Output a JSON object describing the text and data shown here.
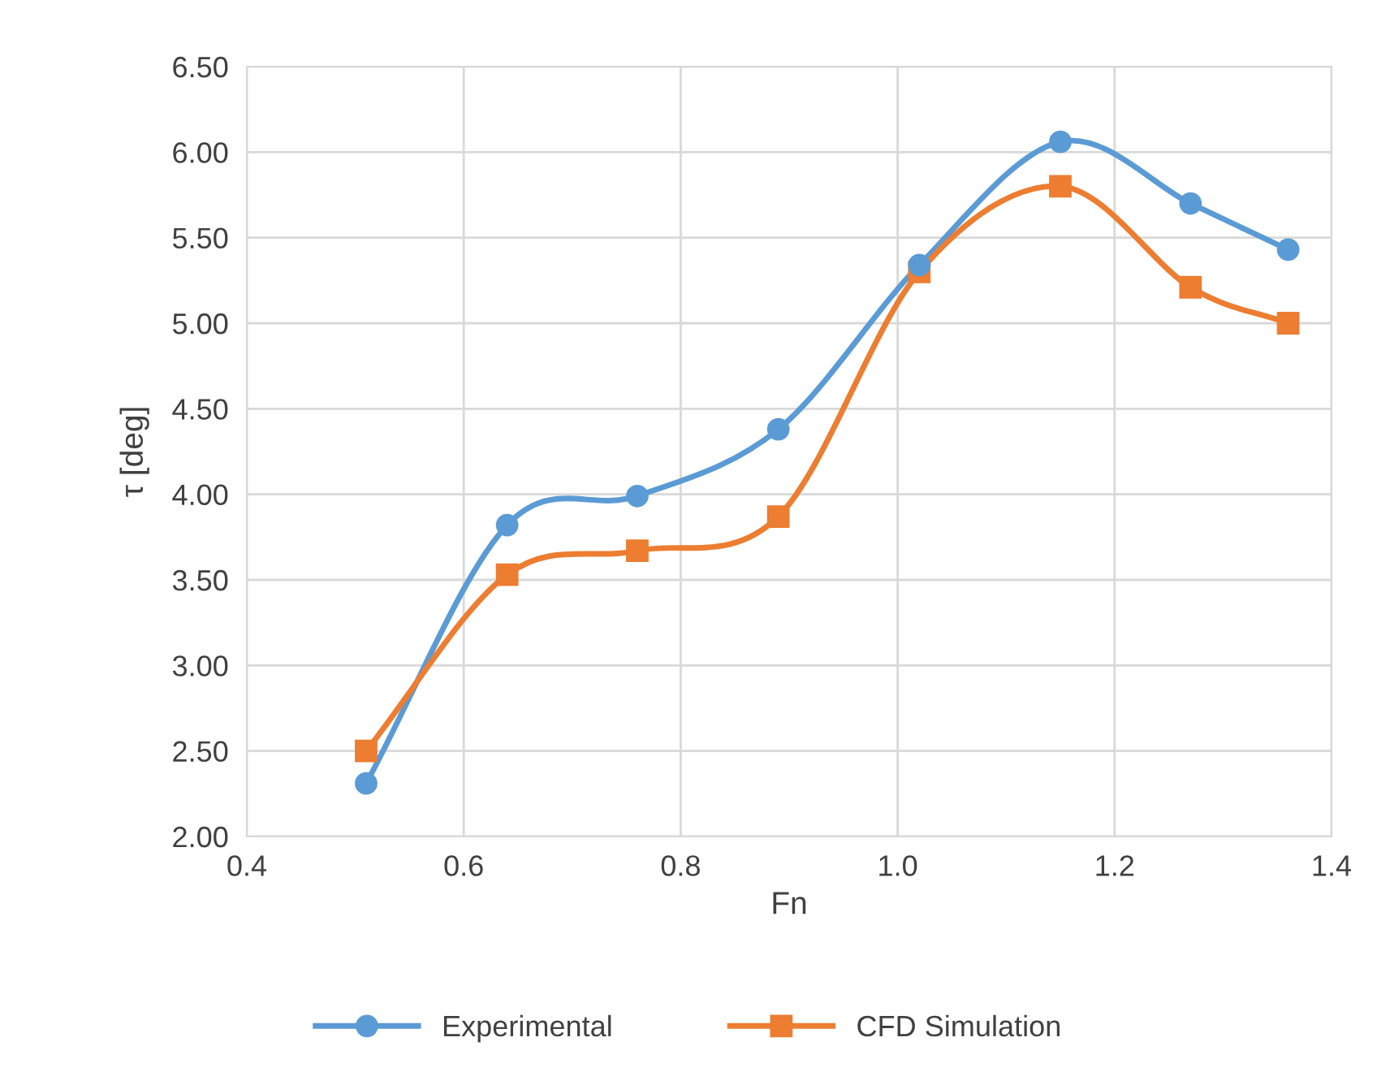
{
  "chart_data": {
    "type": "line",
    "xlabel": "Fn",
    "ylabel": "τ [deg]",
    "series": [
      {
        "name": "Experimental",
        "color": "#5b9bd5",
        "marker": "circle",
        "x": [
          0.51,
          0.64,
          0.76,
          0.89,
          1.02,
          1.15,
          1.27,
          1.36
        ],
        "values": [
          2.31,
          3.82,
          3.99,
          4.38,
          5.34,
          6.06,
          5.7,
          5.43
        ]
      },
      {
        "name": "CFD Simulation",
        "color": "#ed7d31",
        "marker": "square",
        "x": [
          0.51,
          0.64,
          0.76,
          0.89,
          1.02,
          1.15,
          1.27,
          1.36
        ],
        "values": [
          2.5,
          3.53,
          3.67,
          3.87,
          5.3,
          5.8,
          5.21,
          5.0
        ]
      }
    ],
    "xlim": [
      0.4,
      1.4
    ],
    "xticks": [
      {
        "value": 0.4,
        "label": "0.4"
      },
      {
        "value": 0.6,
        "label": "0.6"
      },
      {
        "value": 0.8,
        "label": "0.8"
      },
      {
        "value": 1.0,
        "label": "1.0"
      },
      {
        "value": 1.2,
        "label": "1.2"
      },
      {
        "value": 1.4,
        "label": "1.4"
      }
    ],
    "ylim": [
      2.0,
      6.5
    ],
    "yticks": [
      {
        "value": 2.0,
        "label": "2.00"
      },
      {
        "value": 2.5,
        "label": "2.50"
      },
      {
        "value": 3.0,
        "label": "3.00"
      },
      {
        "value": 3.5,
        "label": "3.50"
      },
      {
        "value": 4.0,
        "label": "4.00"
      },
      {
        "value": 4.5,
        "label": "4.50"
      },
      {
        "value": 5.0,
        "label": "5.00"
      },
      {
        "value": 5.5,
        "label": "5.50"
      },
      {
        "value": 6.0,
        "label": "6.00"
      },
      {
        "value": 6.5,
        "label": "6.50"
      }
    ],
    "grid": true,
    "legend": "bottom",
    "line_style": "solid"
  }
}
